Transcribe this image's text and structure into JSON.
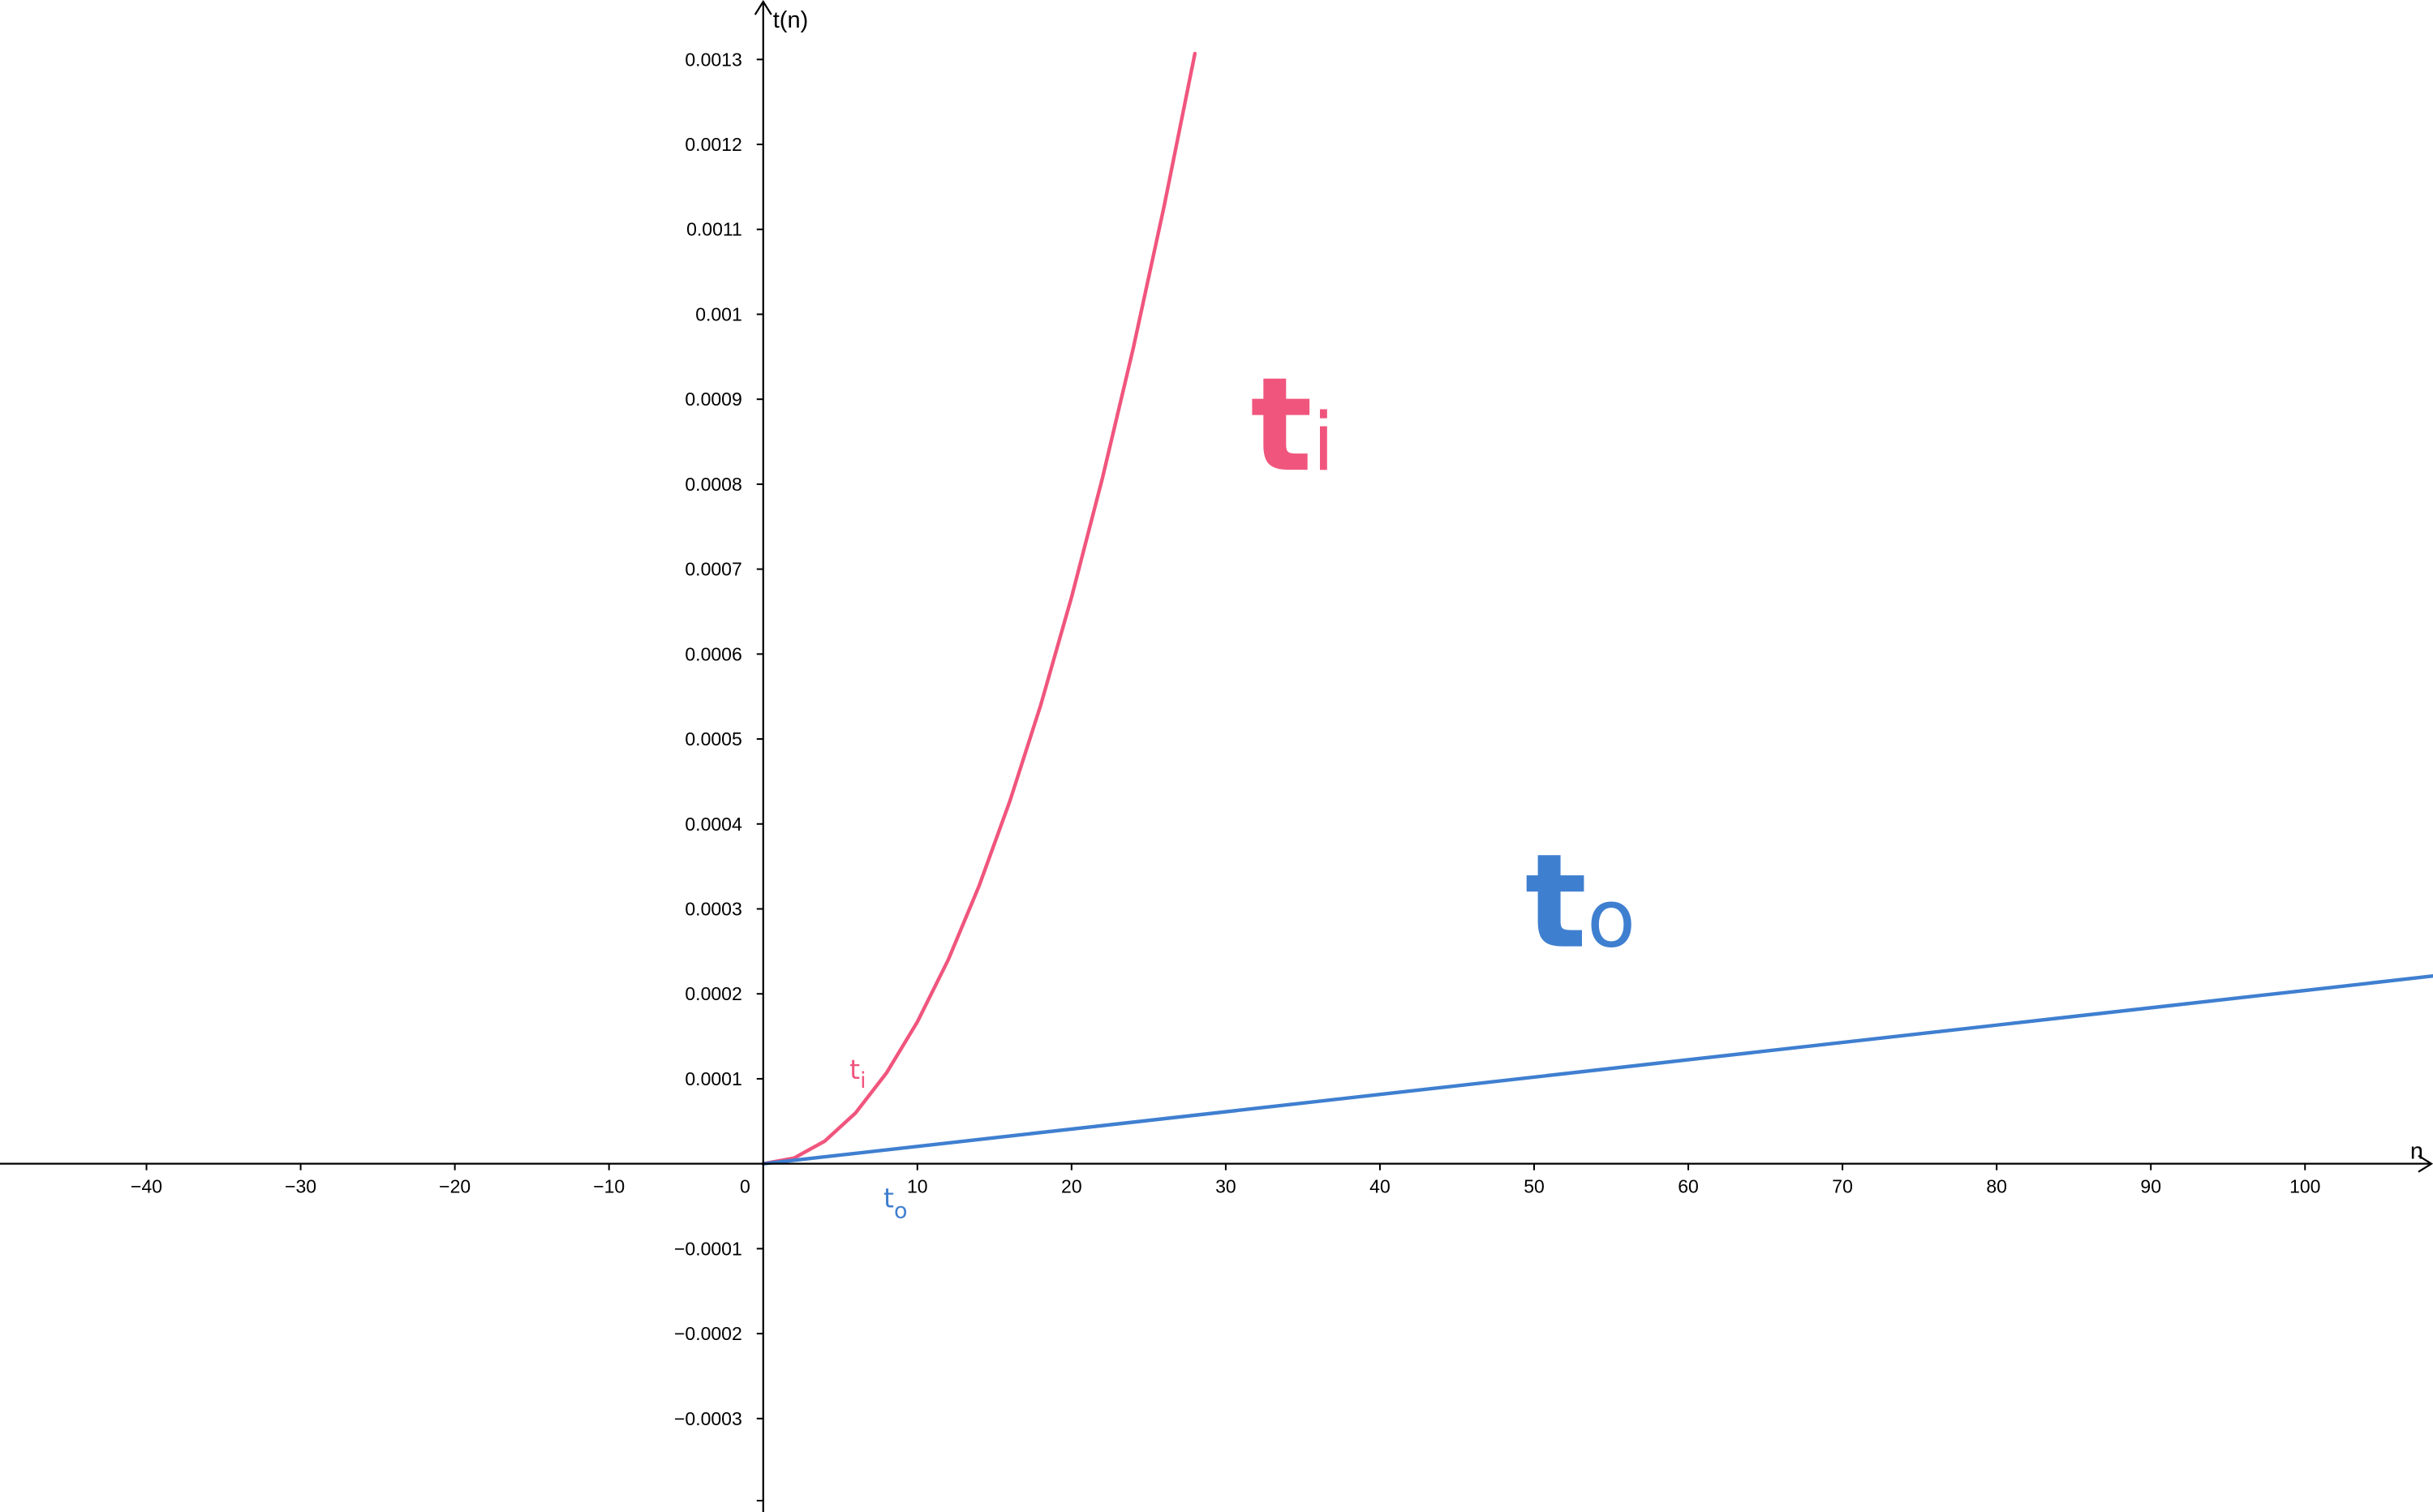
{
  "chart_data": {
    "type": "line",
    "title": "",
    "xlabel": "n",
    "ylabel": "t(n)",
    "xlim": [
      -49.5,
      108.3
    ],
    "ylim": [
      -0.00041,
      0.00137
    ],
    "x_ticks": [
      -40,
      -30,
      -20,
      -10,
      10,
      20,
      30,
      40,
      50,
      60,
      70,
      80,
      90,
      100
    ],
    "x_tick_labels": [
      "−40",
      "−30",
      "−20",
      "−10",
      "10",
      "20",
      "30",
      "40",
      "50",
      "60",
      "70",
      "80",
      "90",
      "100"
    ],
    "origin_label": "0",
    "y_ticks": [
      0.0013,
      0.0012,
      0.0011,
      0.001,
      0.0009,
      0.0008,
      0.0007,
      0.0006,
      0.0005,
      0.0004,
      0.0003,
      0.0002,
      0.0001,
      -0.0001,
      -0.0002,
      -0.0003
    ],
    "y_tick_labels": [
      "0.0013",
      "0.0012",
      "0.0011",
      "0.001",
      "0.0009",
      "0.0008",
      "0.0007",
      "0.0006",
      "0.0005",
      "0.0004",
      "0.0003",
      "0.0002",
      "0.0001",
      "−0.0001",
      "−0.0002",
      "−0.0003"
    ],
    "grid": false,
    "legend": "none",
    "series": [
      {
        "key": "ti",
        "label": "t",
        "label_sub": "i",
        "color": "#f0557d",
        "x": [
          0,
          2,
          4,
          6,
          8,
          10,
          12,
          14,
          16,
          18,
          20,
          22,
          24,
          26,
          28
        ],
        "y": [
          0,
          6.7e-06,
          2.67e-05,
          6e-05,
          0.000107,
          0.000167,
          0.00024,
          0.000327,
          0.000427,
          0.00054,
          0.000667,
          0.000807,
          0.00096,
          0.001127,
          0.001307
        ]
      },
      {
        "key": "to",
        "label": "t",
        "label_sub": "o",
        "color": "#3f7fd0",
        "x": [
          0,
          20,
          40,
          60,
          80,
          100,
          108.3
        ],
        "y": [
          0,
          4.08e-05,
          8.16e-05,
          0.0001224,
          0.0001632,
          0.000204,
          0.000221
        ]
      }
    ]
  }
}
